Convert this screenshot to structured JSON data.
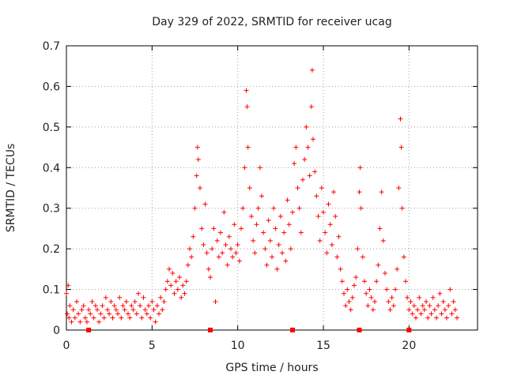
{
  "chart_data": {
    "type": "scatter",
    "title": "Day 329 of 2022, SRMTID for receiver ucag",
    "xlabel": "GPS time / hours",
    "ylabel": "SRMTID / TECUs",
    "xlim": [
      0,
      24
    ],
    "ylim": [
      0,
      0.7
    ],
    "xticks": [
      0,
      5,
      10,
      15,
      20
    ],
    "yticks": [
      0,
      0.1,
      0.2,
      0.3,
      0.4,
      0.5,
      0.6,
      0.7
    ],
    "xtick_labels": [
      "0",
      "5",
      "10",
      "15",
      "20"
    ],
    "ytick_labels": [
      "0",
      "0.1",
      "0.2",
      "0.3",
      "0.4",
      "0.5",
      "0.6",
      "0.7"
    ],
    "grid": true,
    "marker": "+",
    "color": "#ff0000",
    "series": [
      {
        "name": "SRMTID",
        "points": [
          [
            0.0,
            0.09
          ],
          [
            0.05,
            0.04
          ],
          [
            0.1,
            0.11
          ],
          [
            0.15,
            0.03
          ],
          [
            0.2,
            0.06
          ],
          [
            0.3,
            0.02
          ],
          [
            0.4,
            0.05
          ],
          [
            0.5,
            0.03
          ],
          [
            0.6,
            0.07
          ],
          [
            0.7,
            0.04
          ],
          [
            0.8,
            0.02
          ],
          [
            0.9,
            0.05
          ],
          [
            1.0,
            0.06
          ],
          [
            1.1,
            0.03
          ],
          [
            1.2,
            0.02
          ],
          [
            1.3,
            0.05
          ],
          [
            1.4,
            0.04
          ],
          [
            1.5,
            0.07
          ],
          [
            1.6,
            0.03
          ],
          [
            1.7,
            0.06
          ],
          [
            1.8,
            0.05
          ],
          [
            1.9,
            0.02
          ],
          [
            2.0,
            0.04
          ],
          [
            2.1,
            0.06
          ],
          [
            2.2,
            0.03
          ],
          [
            2.3,
            0.08
          ],
          [
            2.4,
            0.05
          ],
          [
            2.5,
            0.04
          ],
          [
            2.6,
            0.07
          ],
          [
            2.7,
            0.03
          ],
          [
            2.8,
            0.06
          ],
          [
            2.9,
            0.05
          ],
          [
            3.0,
            0.04
          ],
          [
            3.1,
            0.08
          ],
          [
            3.2,
            0.03
          ],
          [
            3.3,
            0.06
          ],
          [
            3.4,
            0.05
          ],
          [
            3.5,
            0.07
          ],
          [
            3.6,
            0.04
          ],
          [
            3.7,
            0.03
          ],
          [
            3.8,
            0.06
          ],
          [
            3.9,
            0.05
          ],
          [
            4.0,
            0.07
          ],
          [
            4.1,
            0.04
          ],
          [
            4.2,
            0.09
          ],
          [
            4.3,
            0.06
          ],
          [
            4.4,
            0.03
          ],
          [
            4.5,
            0.08
          ],
          [
            4.6,
            0.05
          ],
          [
            4.7,
            0.04
          ],
          [
            4.8,
            0.06
          ],
          [
            4.9,
            0.03
          ],
          [
            5.0,
            0.07
          ],
          [
            5.1,
            0.05
          ],
          [
            5.2,
            0.02
          ],
          [
            5.3,
            0.06
          ],
          [
            5.4,
            0.04
          ],
          [
            5.5,
            0.08
          ],
          [
            5.6,
            0.05
          ],
          [
            5.7,
            0.07
          ],
          [
            5.8,
            0.1
          ],
          [
            5.9,
            0.12
          ],
          [
            6.0,
            0.15
          ],
          [
            6.1,
            0.11
          ],
          [
            6.2,
            0.14
          ],
          [
            6.3,
            0.09
          ],
          [
            6.4,
            0.12
          ],
          [
            6.5,
            0.1
          ],
          [
            6.6,
            0.13
          ],
          [
            6.7,
            0.08
          ],
          [
            6.8,
            0.11
          ],
          [
            6.9,
            0.09
          ],
          [
            7.0,
            0.12
          ],
          [
            7.1,
            0.16
          ],
          [
            7.2,
            0.2
          ],
          [
            7.3,
            0.18
          ],
          [
            7.4,
            0.23
          ],
          [
            7.5,
            0.3
          ],
          [
            7.6,
            0.38
          ],
          [
            7.65,
            0.45
          ],
          [
            7.7,
            0.42
          ],
          [
            7.8,
            0.35
          ],
          [
            7.9,
            0.25
          ],
          [
            8.0,
            0.21
          ],
          [
            8.1,
            0.31
          ],
          [
            8.2,
            0.19
          ],
          [
            8.3,
            0.15
          ],
          [
            8.4,
            0.13
          ],
          [
            8.5,
            0.2
          ],
          [
            8.6,
            0.25
          ],
          [
            8.7,
            0.07
          ],
          [
            8.8,
            0.22
          ],
          [
            8.9,
            0.18
          ],
          [
            9.0,
            0.24
          ],
          [
            9.1,
            0.19
          ],
          [
            9.2,
            0.29
          ],
          [
            9.3,
            0.21
          ],
          [
            9.4,
            0.16
          ],
          [
            9.5,
            0.23
          ],
          [
            9.6,
            0.2
          ],
          [
            9.7,
            0.18
          ],
          [
            9.8,
            0.26
          ],
          [
            9.9,
            0.19
          ],
          [
            10.0,
            0.21
          ],
          [
            10.1,
            0.17
          ],
          [
            10.2,
            0.25
          ],
          [
            10.3,
            0.3
          ],
          [
            10.4,
            0.4
          ],
          [
            10.5,
            0.59
          ],
          [
            10.55,
            0.55
          ],
          [
            10.6,
            0.45
          ],
          [
            10.7,
            0.35
          ],
          [
            10.8,
            0.28
          ],
          [
            10.9,
            0.22
          ],
          [
            11.0,
            0.19
          ],
          [
            11.1,
            0.26
          ],
          [
            11.2,
            0.3
          ],
          [
            11.3,
            0.4
          ],
          [
            11.4,
            0.33
          ],
          [
            11.5,
            0.24
          ],
          [
            11.6,
            0.2
          ],
          [
            11.7,
            0.16
          ],
          [
            11.8,
            0.27
          ],
          [
            11.9,
            0.22
          ],
          [
            12.0,
            0.18
          ],
          [
            12.1,
            0.3
          ],
          [
            12.2,
            0.25
          ],
          [
            12.3,
            0.15
          ],
          [
            12.4,
            0.21
          ],
          [
            12.5,
            0.28
          ],
          [
            12.6,
            0.19
          ],
          [
            12.7,
            0.24
          ],
          [
            12.8,
            0.17
          ],
          [
            12.9,
            0.32
          ],
          [
            13.0,
            0.26
          ],
          [
            13.1,
            0.2
          ],
          [
            13.2,
            0.29
          ],
          [
            13.3,
            0.41
          ],
          [
            13.4,
            0.45
          ],
          [
            13.5,
            0.35
          ],
          [
            13.6,
            0.3
          ],
          [
            13.7,
            0.24
          ],
          [
            13.8,
            0.37
          ],
          [
            13.9,
            0.42
          ],
          [
            14.0,
            0.5
          ],
          [
            14.1,
            0.45
          ],
          [
            14.2,
            0.38
          ],
          [
            14.3,
            0.55
          ],
          [
            14.35,
            0.64
          ],
          [
            14.4,
            0.47
          ],
          [
            14.5,
            0.39
          ],
          [
            14.6,
            0.33
          ],
          [
            14.7,
            0.28
          ],
          [
            14.8,
            0.22
          ],
          [
            14.9,
            0.35
          ],
          [
            15.0,
            0.29
          ],
          [
            15.1,
            0.24
          ],
          [
            15.2,
            0.19
          ],
          [
            15.3,
            0.31
          ],
          [
            15.4,
            0.26
          ],
          [
            15.5,
            0.21
          ],
          [
            15.6,
            0.34
          ],
          [
            15.7,
            0.28
          ],
          [
            15.8,
            0.18
          ],
          [
            15.9,
            0.23
          ],
          [
            16.0,
            0.15
          ],
          [
            16.1,
            0.12
          ],
          [
            16.2,
            0.09
          ],
          [
            16.3,
            0.06
          ],
          [
            16.4,
            0.1
          ],
          [
            16.5,
            0.07
          ],
          [
            16.6,
            0.05
          ],
          [
            16.7,
            0.08
          ],
          [
            16.8,
            0.11
          ],
          [
            16.9,
            0.13
          ],
          [
            17.0,
            0.2
          ],
          [
            17.1,
            0.34
          ],
          [
            17.15,
            0.4
          ],
          [
            17.2,
            0.3
          ],
          [
            17.3,
            0.18
          ],
          [
            17.4,
            0.12
          ],
          [
            17.5,
            0.09
          ],
          [
            17.6,
            0.06
          ],
          [
            17.7,
            0.1
          ],
          [
            17.8,
            0.08
          ],
          [
            17.9,
            0.05
          ],
          [
            18.0,
            0.07
          ],
          [
            18.1,
            0.12
          ],
          [
            18.2,
            0.16
          ],
          [
            18.3,
            0.25
          ],
          [
            18.4,
            0.34
          ],
          [
            18.5,
            0.22
          ],
          [
            18.6,
            0.14
          ],
          [
            18.7,
            0.1
          ],
          [
            18.8,
            0.07
          ],
          [
            18.9,
            0.05
          ],
          [
            19.0,
            0.08
          ],
          [
            19.1,
            0.06
          ],
          [
            19.2,
            0.1
          ],
          [
            19.3,
            0.15
          ],
          [
            19.4,
            0.35
          ],
          [
            19.5,
            0.52
          ],
          [
            19.55,
            0.45
          ],
          [
            19.6,
            0.3
          ],
          [
            19.7,
            0.18
          ],
          [
            19.8,
            0.12
          ],
          [
            19.9,
            0.08
          ],
          [
            20.0,
            0.05
          ],
          [
            20.1,
            0.07
          ],
          [
            20.2,
            0.04
          ],
          [
            20.3,
            0.06
          ],
          [
            20.4,
            0.03
          ],
          [
            20.5,
            0.05
          ],
          [
            20.6,
            0.08
          ],
          [
            20.7,
            0.04
          ],
          [
            20.8,
            0.06
          ],
          [
            20.9,
            0.05
          ],
          [
            21.0,
            0.07
          ],
          [
            21.1,
            0.03
          ],
          [
            21.2,
            0.06
          ],
          [
            21.3,
            0.04
          ],
          [
            21.4,
            0.08
          ],
          [
            21.5,
            0.05
          ],
          [
            21.6,
            0.03
          ],
          [
            21.7,
            0.06
          ],
          [
            21.8,
            0.09
          ],
          [
            21.9,
            0.04
          ],
          [
            22.0,
            0.07
          ],
          [
            22.1,
            0.05
          ],
          [
            22.2,
            0.03
          ],
          [
            22.3,
            0.06
          ],
          [
            22.4,
            0.1
          ],
          [
            22.5,
            0.04
          ],
          [
            22.6,
            0.07
          ],
          [
            22.7,
            0.05
          ],
          [
            22.8,
            0.03
          ]
        ]
      }
    ],
    "axis_markers_x": [
      1.3,
      8.4,
      13.2,
      17.1,
      20.0
    ]
  }
}
